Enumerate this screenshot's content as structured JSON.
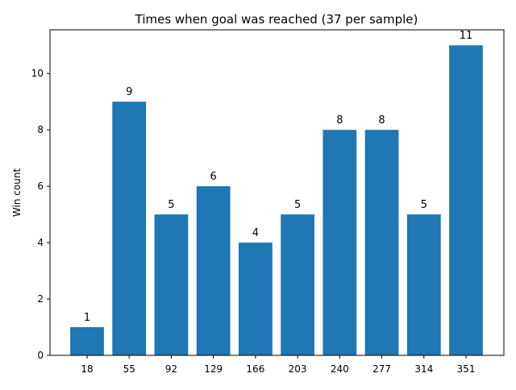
{
  "chart_data": {
    "type": "bar",
    "title": "Times when goal was reached (37 per sample)",
    "xlabel": "",
    "ylabel": "Win count",
    "categories": [
      "18",
      "55",
      "92",
      "129",
      "166",
      "203",
      "240",
      "277",
      "314",
      "351"
    ],
    "values": [
      1,
      9,
      5,
      6,
      4,
      5,
      8,
      8,
      5,
      11
    ],
    "data_labels": [
      "1",
      "9",
      "5",
      "6",
      "4",
      "5",
      "8",
      "8",
      "5",
      "11"
    ],
    "ylim": [
      0,
      11.55
    ],
    "yticks": [
      0,
      2,
      4,
      6,
      8,
      10
    ],
    "ytick_labels": [
      "0",
      "2",
      "4",
      "6",
      "8",
      "10"
    ],
    "grid": false,
    "legend": "none",
    "bar_color": "#1f77b4"
  }
}
